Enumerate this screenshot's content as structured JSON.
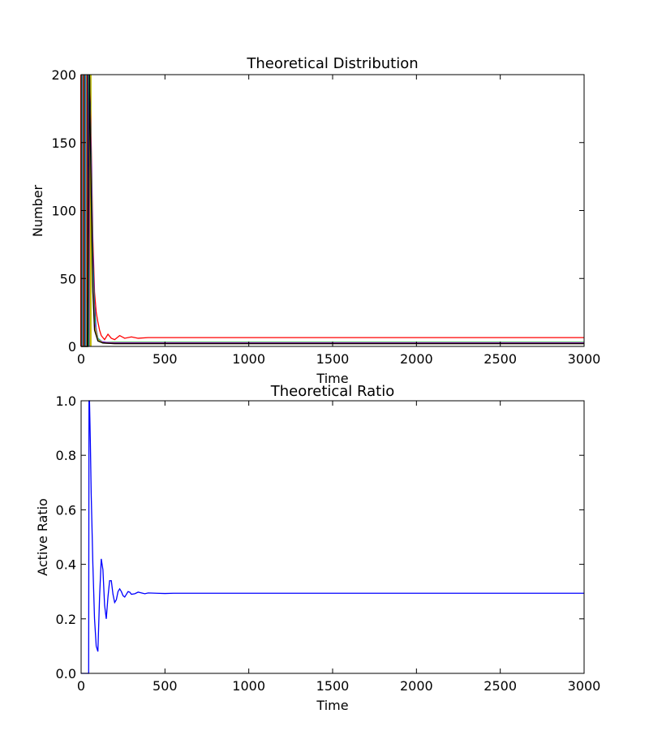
{
  "chart_data": [
    {
      "type": "line",
      "title": "Theoretical Distribution",
      "xlabel": "Time",
      "ylabel": "Number",
      "xlim": [
        0,
        3000
      ],
      "ylim": [
        0,
        200
      ],
      "xticks": [
        0,
        500,
        1000,
        1500,
        2000,
        2500,
        3000
      ],
      "yticks": [
        0,
        50,
        100,
        150,
        200
      ],
      "grid": false,
      "legend": "none",
      "series_colors": [
        "#ff0000",
        "#0000ff",
        "#00bf00",
        "#00bfbf",
        "#bf00bf",
        "#bfbf00",
        "#000000"
      ],
      "series": [
        {
          "color": "#ff0000",
          "x": [
            0,
            40,
            50,
            60,
            70,
            80,
            90,
            100,
            110,
            120,
            140,
            160,
            180,
            200,
            230,
            260,
            300,
            340,
            400,
            500,
            3000
          ],
          "y": [
            0,
            0,
            200,
            150,
            80,
            40,
            25,
            18,
            12,
            8,
            5,
            9,
            6,
            5,
            8,
            6,
            7,
            6,
            6.5,
            6.5,
            6.5
          ]
        },
        {
          "color": "#0000ff",
          "x": [
            0,
            40,
            50,
            60,
            70,
            80,
            90,
            100,
            120,
            150,
            200,
            300,
            3000
          ],
          "y": [
            0,
            0,
            200,
            140,
            70,
            30,
            12,
            6,
            3.5,
            3,
            3,
            3,
            3
          ]
        },
        {
          "color": "#00bf00",
          "x": [
            0,
            40,
            50,
            60,
            70,
            80,
            90,
            100,
            130,
            200,
            3000
          ],
          "y": [
            0,
            0,
            200,
            130,
            60,
            25,
            10,
            5,
            3,
            3,
            3
          ]
        },
        {
          "color": "#00bfbf",
          "x": [
            0,
            40,
            50,
            60,
            70,
            80,
            100,
            130,
            200,
            3000
          ],
          "y": [
            0,
            0,
            200,
            125,
            55,
            20,
            6,
            3,
            2.5,
            2.5
          ]
        },
        {
          "color": "#bf00bf",
          "x": [
            0,
            40,
            50,
            60,
            70,
            80,
            100,
            130,
            200,
            3000
          ],
          "y": [
            0,
            0,
            200,
            120,
            50,
            18,
            5,
            3,
            2.5,
            2.5
          ]
        },
        {
          "color": "#bfbf00",
          "x": [
            0,
            40,
            50,
            60,
            70,
            80,
            100,
            130,
            200,
            3000
          ],
          "y": [
            0,
            0,
            200,
            115,
            45,
            15,
            5,
            2.5,
            2,
            2
          ]
        },
        {
          "color": "#000000",
          "x": [
            0,
            40,
            50,
            60,
            70,
            80,
            100,
            130,
            200,
            3000
          ],
          "y": [
            0,
            0,
            200,
            110,
            40,
            12,
            4,
            2.5,
            2,
            2
          ]
        }
      ]
    },
    {
      "type": "line",
      "title": "Theoretical Ratio",
      "xlabel": "Time",
      "ylabel": "Active Ratio",
      "xlim": [
        0,
        3000
      ],
      "ylim": [
        0,
        1.0
      ],
      "xticks": [
        0,
        500,
        1000,
        1500,
        2000,
        2500,
        3000
      ],
      "yticks": [
        0.0,
        0.2,
        0.4,
        0.6,
        0.8,
        1.0
      ],
      "ytick_labels": [
        "0.0",
        "0.2",
        "0.4",
        "0.6",
        "0.8",
        "1.0"
      ],
      "grid": false,
      "legend": "none",
      "series": [
        {
          "color": "#0000ff",
          "x": [
            0,
            45,
            47,
            50,
            55,
            60,
            70,
            80,
            90,
            100,
            110,
            120,
            130,
            140,
            150,
            160,
            170,
            180,
            190,
            200,
            210,
            220,
            230,
            240,
            250,
            260,
            270,
            280,
            290,
            300,
            320,
            340,
            360,
            380,
            400,
            450,
            500,
            550,
            600,
            3000
          ],
          "y": [
            0.0,
            0.0,
            1.0,
            1.0,
            0.85,
            0.66,
            0.4,
            0.2,
            0.1,
            0.08,
            0.28,
            0.42,
            0.38,
            0.25,
            0.2,
            0.28,
            0.34,
            0.34,
            0.29,
            0.26,
            0.27,
            0.3,
            0.31,
            0.3,
            0.285,
            0.28,
            0.29,
            0.3,
            0.298,
            0.29,
            0.292,
            0.298,
            0.295,
            0.292,
            0.295,
            0.294,
            0.293,
            0.294,
            0.294,
            0.294
          ]
        }
      ]
    }
  ]
}
